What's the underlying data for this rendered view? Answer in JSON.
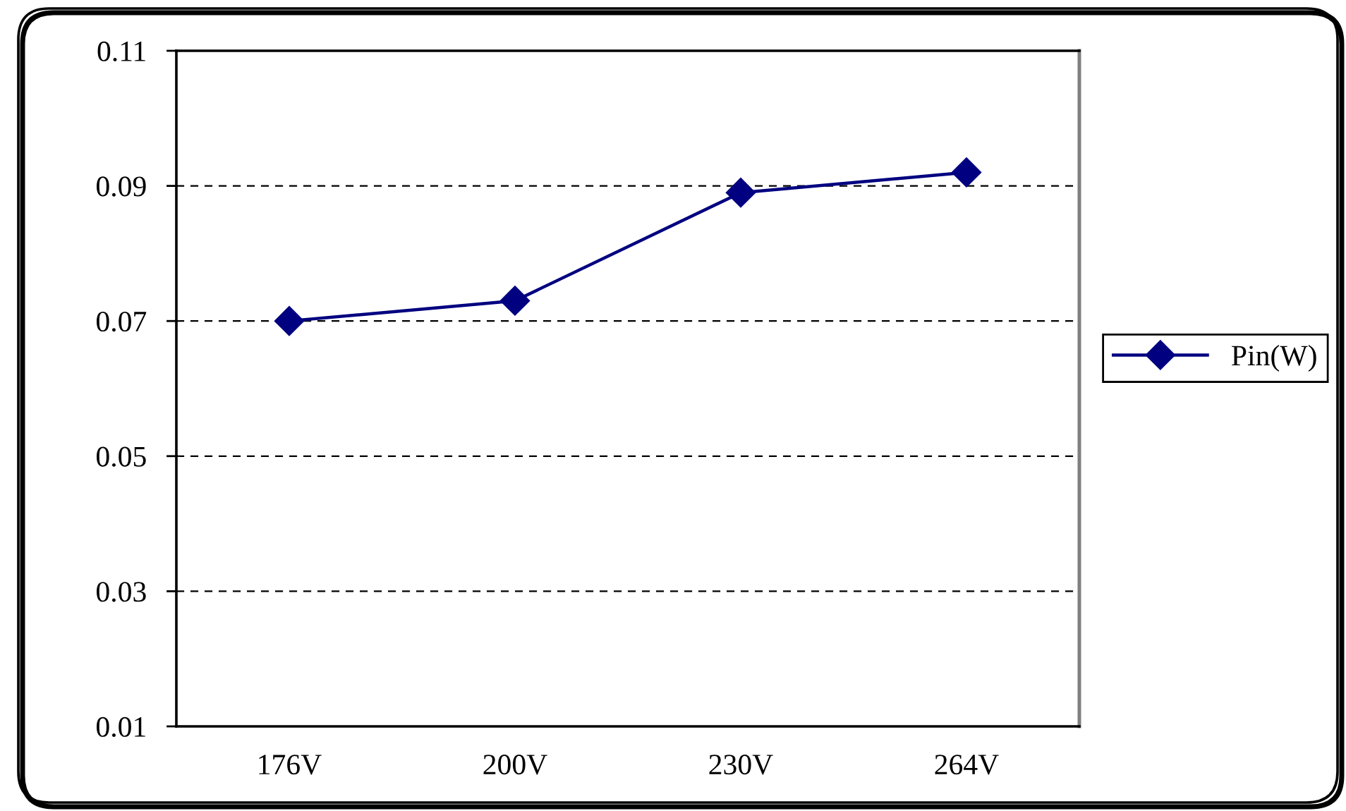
{
  "chart_data": {
    "type": "line",
    "categories": [
      "176V",
      "200V",
      "230V",
      "264V"
    ],
    "series": [
      {
        "name": "Pin(W)",
        "color": "#000080",
        "values": [
          0.07,
          0.073,
          0.089,
          0.092
        ]
      }
    ],
    "ylim": [
      0.01,
      0.11
    ],
    "yticks": [
      0.01,
      0.03,
      0.05,
      0.07,
      0.09,
      0.11
    ],
    "grid": "y",
    "legend": "right",
    "marker": "diamond",
    "line_style": "solid"
  }
}
